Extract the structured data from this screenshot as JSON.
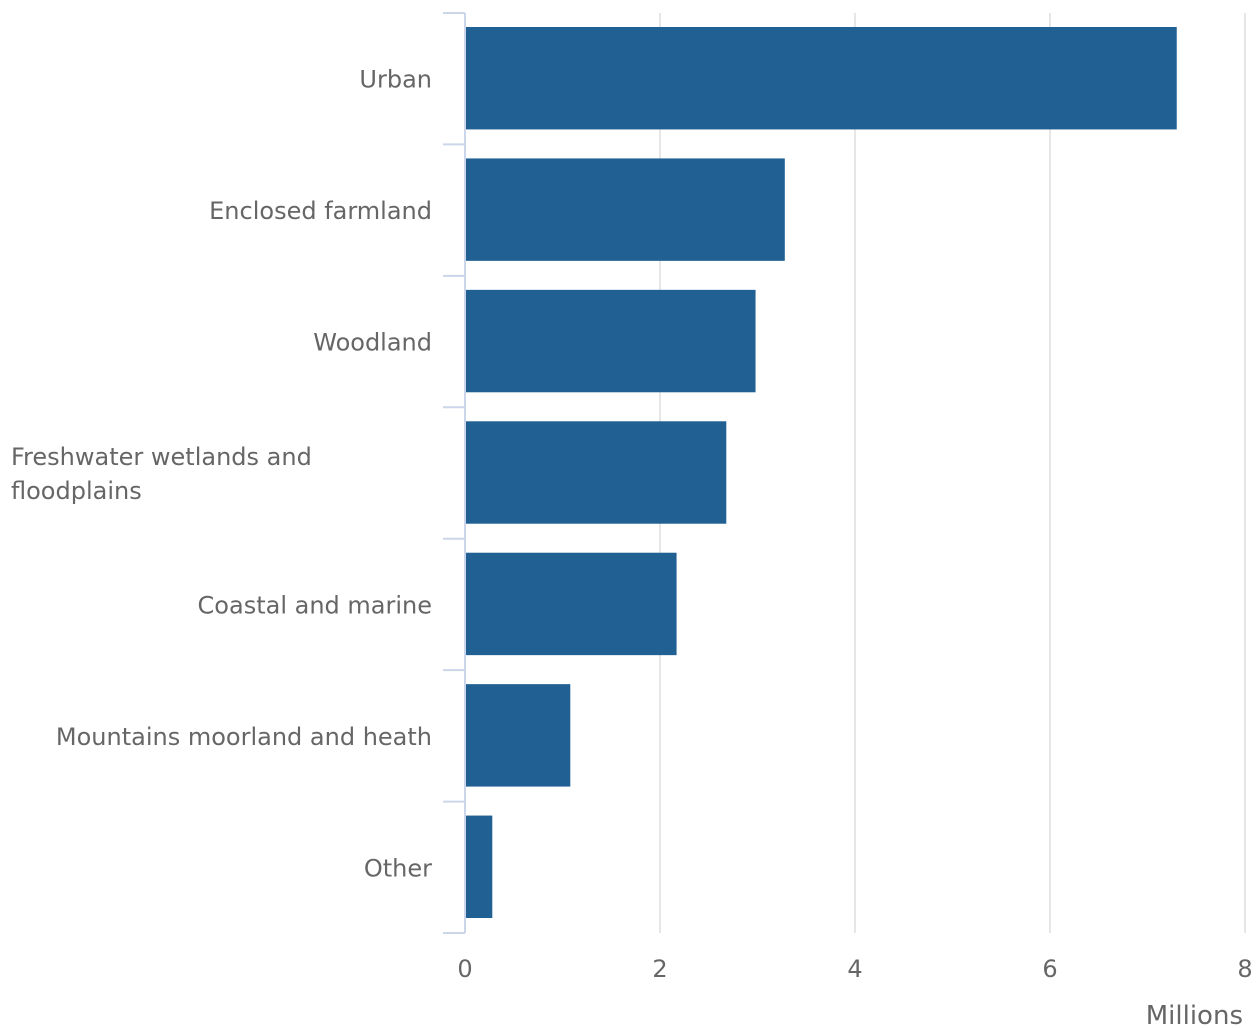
{
  "chart_data": {
    "type": "bar",
    "orientation": "horizontal",
    "categories": [
      [
        "Urban"
      ],
      [
        "Enclosed farmland"
      ],
      [
        "Woodland"
      ],
      [
        "Freshwater wetlands and",
        "floodplains"
      ],
      [
        "Coastal and marine"
      ],
      [
        "Mountains moorland and heath"
      ],
      [
        "Other"
      ]
    ],
    "values": [
      7.3,
      3.28,
      2.98,
      2.68,
      2.17,
      1.08,
      0.28
    ],
    "xlabel": "Millions",
    "xlim": [
      0,
      8
    ],
    "xticks": [
      0,
      2,
      4,
      6,
      8
    ],
    "grid": true,
    "colors": {
      "bar": "#216093",
      "grid": "#e6e6e6",
      "axis": "#ccd6eb",
      "text": "#666666"
    }
  }
}
